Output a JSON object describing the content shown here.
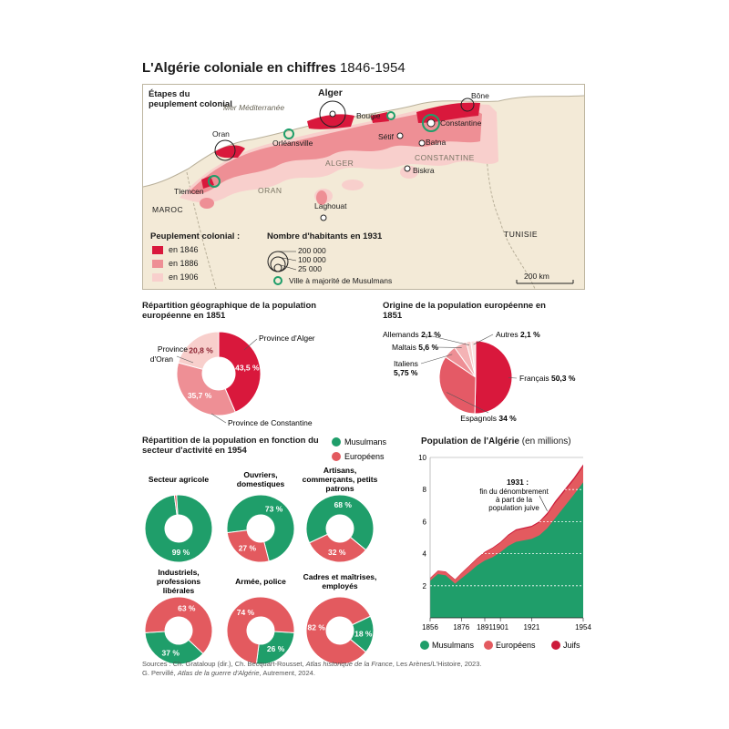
{
  "title": {
    "main": "L'Algérie coloniale en chiffres",
    "years": "1846-1954"
  },
  "colors": {
    "c1846": "#d9183c",
    "c1886": "#ee8f95",
    "c1906": "#f8cfcc",
    "musulmans": "#1f9e6a",
    "europeens": "#e35a5f",
    "juifs": "#cc1a3a",
    "land": "#f3ead7"
  },
  "map": {
    "heading": "Étapes du peuplement colonial",
    "sea": "Mer Méditerranée",
    "cities": {
      "alger": "Alger",
      "bone": "Bône",
      "bougie": "Bougie",
      "constantine": "Constantine",
      "oran": "Oran",
      "orleansville": "Orléansville",
      "setif": "Sétif",
      "batna": "Batna",
      "biskra": "Biskra",
      "tlemcen": "Tlemcen",
      "laghouat": "Laghouat"
    },
    "regions": {
      "alger": "ALGER",
      "constantine": "CONSTANTINE",
      "oran": "ORAN",
      "maroc": "MAROC",
      "tunisie": "TUNISIE"
    },
    "legend_title": "Peuplement colonial :",
    "legend": [
      "en 1846",
      "en 1886",
      "en 1906"
    ],
    "pop_title": "Nombre d'habitants en 1931",
    "pop_sizes": [
      "200 000",
      "100 000",
      "25 000"
    ],
    "majority_label": "Ville à majorité de Musulmans",
    "scale": "200 km"
  },
  "chart_data": [
    {
      "type": "pie",
      "title": "Répartition géographique de la population européenne en 1851",
      "categories": [
        "Province d'Alger",
        "Province de Constantine",
        "Province d'Oran"
      ],
      "values": [
        43.5,
        35.7,
        20.8
      ],
      "value_labels": [
        "43,5 %",
        "35,7 %",
        "20,8 %"
      ],
      "colors": [
        "#d9183c",
        "#ee8f95",
        "#f8cfcc"
      ]
    },
    {
      "type": "pie",
      "title": "Origine de la population européenne en 1851",
      "categories": [
        "Français",
        "Espagnols",
        "Italiens",
        "Maltais",
        "Allemands",
        "Autres"
      ],
      "values": [
        50.3,
        34,
        5.75,
        5.6,
        2.1,
        2.1
      ],
      "value_labels": [
        "50,3 %",
        "34 %",
        "5,75 %",
        "5,6 %",
        "2,1 %",
        "2,1 %"
      ],
      "colors": [
        "#d9183c",
        "#e45a66",
        "#ee8f95",
        "#f4b3b5",
        "#f8cfcc",
        "#fbe3e1"
      ]
    },
    {
      "type": "pie",
      "title": "Répartition de la population en fonction du secteur d'activité en 1954",
      "legend": [
        "Musulmans",
        "Européens"
      ],
      "sectors": [
        {
          "name": "Secteur agricole",
          "musulmans": 99,
          "europeens": 1,
          "label_m": "99 %",
          "label_e": ""
        },
        {
          "name": "Ouvriers, domestiques",
          "musulmans": 73,
          "europeens": 27,
          "label_m": "73 %",
          "label_e": "27 %"
        },
        {
          "name": "Artisans, commerçants, petits patrons",
          "musulmans": 68,
          "europeens": 32,
          "label_m": "68 %",
          "label_e": "32 %"
        },
        {
          "name": "Industriels, professions libérales",
          "musulmans": 37,
          "europeens": 63,
          "label_m": "37 %",
          "label_e": "63 %"
        },
        {
          "name": "Armée, police",
          "musulmans": 26,
          "europeens": 74,
          "label_m": "26 %",
          "label_e": "74 %"
        },
        {
          "name": "Cadres et maîtrises, employés",
          "musulmans": 18,
          "europeens": 82,
          "label_m": "18 %",
          "label_e": "82 %"
        }
      ]
    },
    {
      "type": "area",
      "title": "Population de l'Algérie",
      "subtitle": "(en millions)",
      "x": [
        1856,
        1861,
        1866,
        1872,
        1876,
        1881,
        1886,
        1891,
        1896,
        1901,
        1906,
        1911,
        1921,
        1926,
        1931,
        1936,
        1948,
        1954
      ],
      "series": [
        {
          "name": "Musulmans",
          "values": [
            2.31,
            2.73,
            2.65,
            2.13,
            2.46,
            2.84,
            3.26,
            3.57,
            3.78,
            4.09,
            4.48,
            4.74,
            4.92,
            5.15,
            5.59,
            6.2,
            7.68,
            8.45
          ]
        },
        {
          "name": "Européens",
          "values": [
            0.16,
            0.19,
            0.21,
            0.24,
            0.31,
            0.37,
            0.42,
            0.5,
            0.55,
            0.58,
            0.65,
            0.71,
            0.75,
            0.8,
            0.85,
            0.95,
            0.92,
            0.98
          ]
        },
        {
          "name": "Juifs",
          "values": [
            0.02,
            0.03,
            0.03,
            0.03,
            0.03,
            0.04,
            0.04,
            0.05,
            0.05,
            0.06,
            0.06,
            0.07,
            0.07,
            0.07,
            0.11,
            0.12,
            0.13,
            0.14
          ]
        }
      ],
      "ylim": [
        0,
        10
      ],
      "yticks": [
        2,
        4,
        6,
        8,
        10
      ],
      "xticks": [
        1856,
        1876,
        1891,
        1901,
        1921,
        1954
      ],
      "annotation": {
        "year": "1931 :",
        "text": [
          "fin du dénombrement",
          "à part de la",
          "population juive"
        ]
      }
    }
  ],
  "sources": {
    "line1_prefix": "Sources : Ch. Grataloup (dir.), Ch. Becquart-Rousset,",
    "line1_title": "Atlas historique de la France",
    "line1_suffix": ", Les Arènes/L'Histoire, 2023.",
    "line2_prefix": "G. Pervillé,",
    "line2_title": "Atlas de la guerre d'Algérie",
    "line2_suffix": ", Autrement, 2024."
  }
}
